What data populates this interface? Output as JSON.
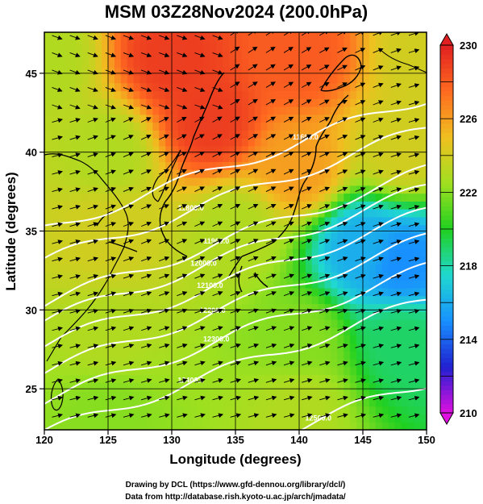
{
  "chart_data": {
    "type": "heatmap",
    "title": "MSM 03Z28Nov2024 (200.0hPa)",
    "xlabel": "Longitude (degrees)",
    "ylabel": "Latitude  (degrees)",
    "xlim": [
      120,
      150
    ],
    "ylim": [
      22.4,
      47.6
    ],
    "x_ticks": [
      120,
      125,
      130,
      135,
      140,
      145,
      150
    ],
    "y_ticks": [
      25,
      30,
      35,
      40,
      45
    ],
    "colorbar": {
      "range": [
        210,
        230
      ],
      "ticks": [
        210,
        214,
        218,
        222,
        226,
        230
      ],
      "colors": [
        "#e010e0",
        "#2020d0",
        "#1890ff",
        "#20d8d0",
        "#20d020",
        "#a0e020",
        "#f0c020",
        "#ff6a20",
        "#e02020"
      ]
    },
    "field_samples": [
      {
        "lon": 120,
        "lat": 46,
        "value": 223
      },
      {
        "lon": 130,
        "lat": 46,
        "value": 229
      },
      {
        "lon": 140,
        "lat": 46,
        "value": 228
      },
      {
        "lon": 150,
        "lat": 46,
        "value": 224
      },
      {
        "lon": 125,
        "lat": 40,
        "value": 223
      },
      {
        "lon": 133,
        "lat": 42,
        "value": 229
      },
      {
        "lon": 140,
        "lat": 39,
        "value": 226
      },
      {
        "lon": 148,
        "lat": 40,
        "value": 224
      },
      {
        "lon": 125,
        "lat": 35,
        "value": 224
      },
      {
        "lon": 135,
        "lat": 35,
        "value": 223
      },
      {
        "lon": 145,
        "lat": 34,
        "value": 216
      },
      {
        "lon": 148,
        "lat": 33,
        "value": 215
      },
      {
        "lon": 125,
        "lat": 28,
        "value": 223
      },
      {
        "lon": 140,
        "lat": 28,
        "value": 222
      },
      {
        "lon": 148,
        "lat": 28,
        "value": 219
      },
      {
        "lon": 125,
        "lat": 24,
        "value": 222
      },
      {
        "lon": 140,
        "lat": 24,
        "value": 223
      }
    ],
    "contour_labels": [
      {
        "lon": 131.5,
        "lat": 36.3,
        "text": "11800.0"
      },
      {
        "lon": 133.5,
        "lat": 34.2,
        "text": "11900.0"
      },
      {
        "lon": 132.5,
        "lat": 32.8,
        "text": "12000.0"
      },
      {
        "lon": 133.0,
        "lat": 31.4,
        "text": "12100.0"
      },
      {
        "lon": 133.2,
        "lat": 29.8,
        "text": "12200.0"
      },
      {
        "lon": 133.5,
        "lat": 28.0,
        "text": "12300.0"
      },
      {
        "lon": 131.5,
        "lat": 25.4,
        "text": "12400.0"
      },
      {
        "lon": 141.5,
        "lat": 23.0,
        "text": "12500.0"
      },
      {
        "lon": 140.5,
        "lat": 40.8,
        "text": "11600.0"
      }
    ],
    "grid": true,
    "legend": "colorbar-right",
    "credits": [
      "Drawing by DCL (https://www.gfd-dennou.org/library/dcl/)",
      "Data from http://database.rish.kyoto-u.ac.jp/arch/jmadata/"
    ]
  }
}
